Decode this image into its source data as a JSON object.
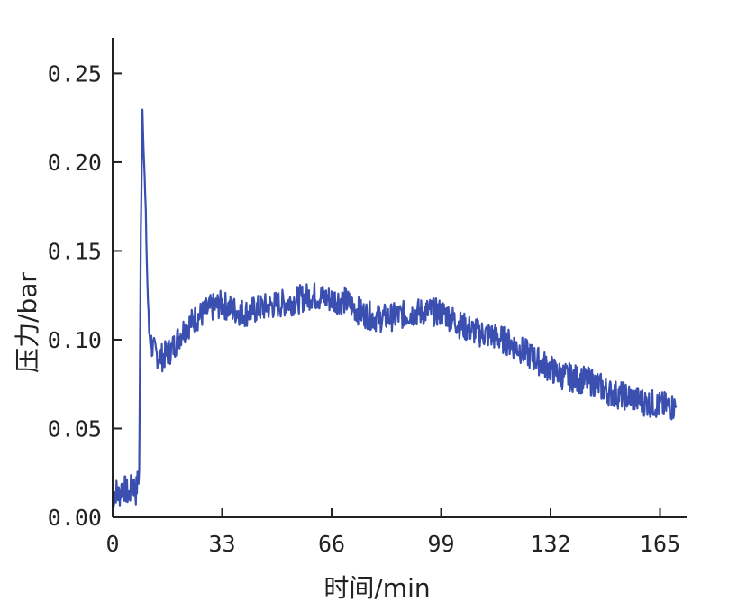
{
  "chart_data": {
    "type": "line",
    "xlabel": "时间/min",
    "ylabel": "压力/bar",
    "xlim": [
      0,
      173
    ],
    "ylim": [
      0,
      0.27
    ],
    "xticks": [
      0,
      33,
      66,
      99,
      132,
      165
    ],
    "xtick_labels": [
      "0",
      "33",
      "66",
      "99",
      "132",
      "165"
    ],
    "yticks": [
      0,
      0.05,
      0.1,
      0.15,
      0.2,
      0.25
    ],
    "ytick_labels": [
      "0.00",
      "0.05",
      "0.10",
      "0.15",
      "0.20",
      "0.25"
    ],
    "grid": false,
    "legend": "none",
    "line_color": "#3a4fb0",
    "series": [
      {
        "x": [
          0,
          1,
          2,
          3,
          4,
          5,
          6,
          7,
          8,
          8.5,
          9,
          9.5,
          10,
          10.5,
          11,
          12,
          13,
          15,
          18,
          21,
          25,
          30,
          33,
          36,
          40,
          45,
          50,
          55,
          60,
          65,
          70,
          75,
          80,
          85,
          90,
          95,
          100,
          105,
          110,
          115,
          120,
          125,
          130,
          135,
          140,
          145,
          150,
          155,
          160,
          165,
          170
        ],
        "y": [
          0.01,
          0.015,
          0.012,
          0.018,
          0.015,
          0.012,
          0.02,
          0.014,
          0.025,
          0.16,
          0.23,
          0.2,
          0.17,
          0.13,
          0.105,
          0.095,
          0.092,
          0.09,
          0.095,
          0.105,
          0.112,
          0.118,
          0.12,
          0.117,
          0.115,
          0.118,
          0.12,
          0.122,
          0.125,
          0.123,
          0.122,
          0.115,
          0.112,
          0.113,
          0.115,
          0.116,
          0.115,
          0.108,
          0.104,
          0.102,
          0.098,
          0.092,
          0.086,
          0.08,
          0.078,
          0.076,
          0.07,
          0.068,
          0.065,
          0.063,
          0.062
        ]
      }
    ]
  }
}
